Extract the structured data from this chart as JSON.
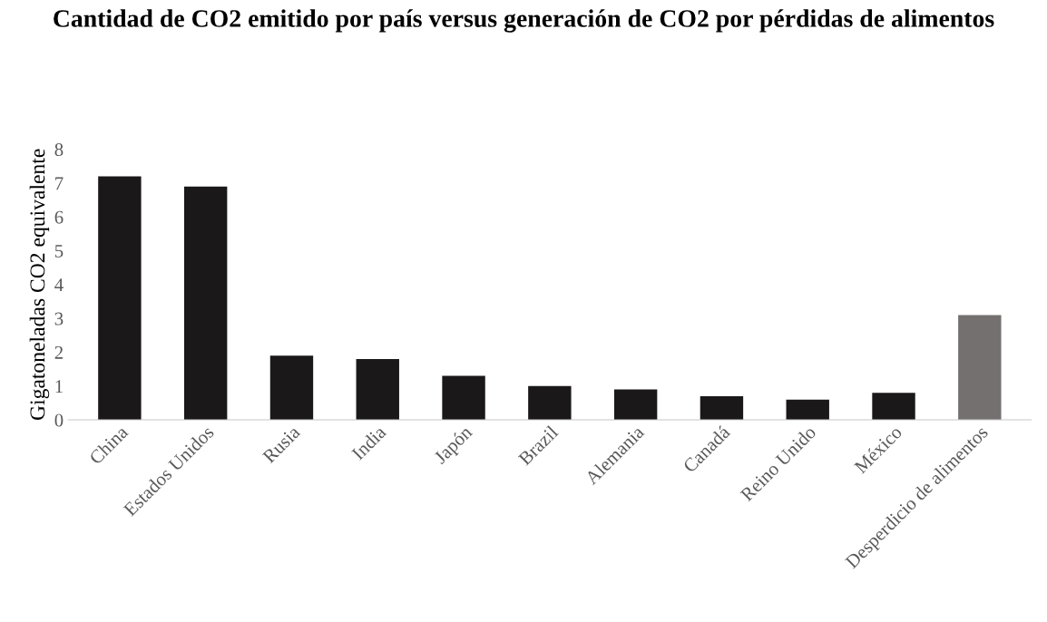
{
  "chart_data": {
    "type": "bar",
    "title": "Cantidad de CO2 emitido por país versus generación de CO2 por pérdidas de alimentos",
    "ylabel": "Gigatoneladas CO2 equivalente",
    "categories": [
      "China",
      "Estados Unidos",
      "Rusia",
      "India",
      "Japón",
      "Brazil",
      "Alemania",
      "Canadá",
      "Reino Unido",
      "México",
      "Desperdicio de alimentos"
    ],
    "values": [
      7.2,
      6.9,
      1.9,
      1.8,
      1.3,
      1.0,
      0.9,
      0.7,
      0.6,
      0.8,
      3.1
    ],
    "colors": [
      "#1a1819",
      "#1a1819",
      "#1a1819",
      "#1a1819",
      "#1a1819",
      "#1a1819",
      "#1a1819",
      "#1a1819",
      "#1a1819",
      "#1a1819",
      "#747070"
    ],
    "ylim": [
      0,
      8
    ],
    "yticks": [
      0,
      1,
      2,
      3,
      4,
      5,
      6,
      7,
      8
    ],
    "grid": false
  }
}
